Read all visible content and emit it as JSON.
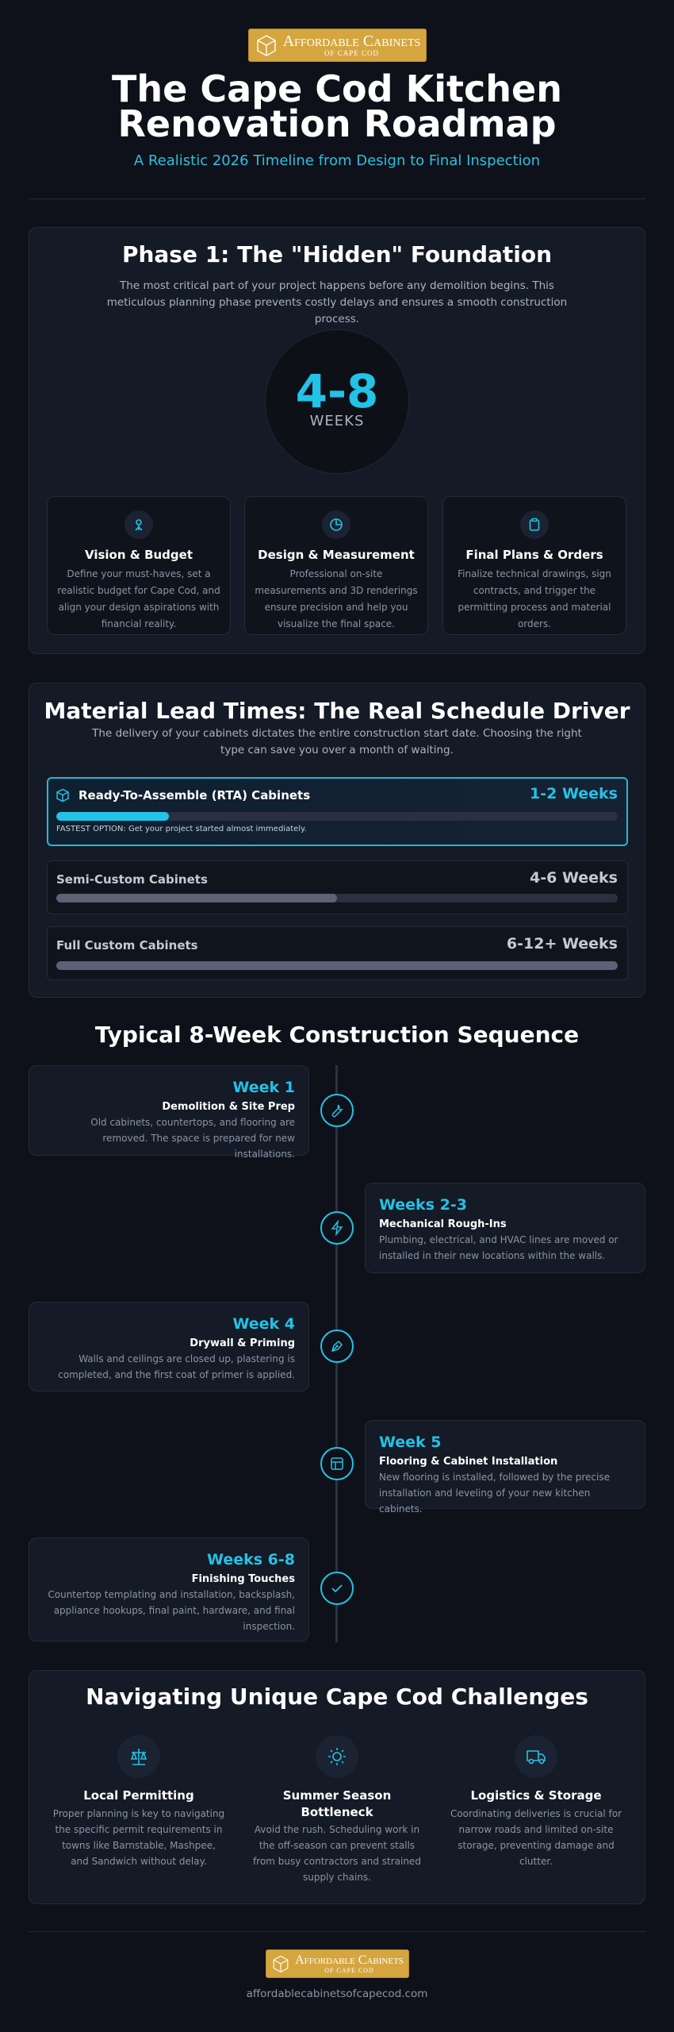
{
  "header": {
    "logo": {
      "name": "Affordable Cabinets",
      "tagline": "OF CAPE COD"
    },
    "title": "The Cape Cod Kitchen Renovation Roadmap",
    "subtitle": "A Realistic 2026 Timeline from Design to Final Inspection"
  },
  "phase1": {
    "title": "Phase 1: The \"Hidden\" Foundation",
    "description": "The most critical part of your project happens before any demolition begins. This meticulous planning phase prevents costly delays and ensures a smooth construction process.",
    "duration": "4-8",
    "duration_unit": "WEEKS",
    "steps": [
      {
        "title": "Vision & Budget",
        "description": "Define your must-haves, set a realistic budget for Cape Cod, and align your design aspirations with financial reality."
      },
      {
        "title": "Design & Measurement",
        "description": "Professional on-site measurements and 3D renderings ensure precision and help you visualize the final space."
      },
      {
        "title": "Final Plans & Orders",
        "description": "Finalize technical drawings, sign contracts, and trigger the permitting process and material orders."
      }
    ]
  },
  "lead_times": {
    "title": "Material Lead Times: The Real Schedule Driver",
    "description": "The delivery of your cabinets dictates the entire construction start date. Choosing the right type can save you over a month of waiting.",
    "options": [
      {
        "name": "Ready-To-Assemble (RTA) Cabinets",
        "duration": "1-2 Weeks",
        "note": "FASTEST OPTION: Get your project started almost immediately.",
        "bar_percent": 20
      },
      {
        "name": "Semi-Custom Cabinets",
        "duration": "4-6 Weeks",
        "bar_percent": 50
      },
      {
        "name": "Full Custom Cabinets",
        "duration": "6-12+ Weeks",
        "bar_percent": 100
      }
    ]
  },
  "sequence": {
    "title": "Typical 8-Week Construction Sequence",
    "steps": [
      {
        "week": "Week 1",
        "title": "Demolition & Site Prep",
        "description": "Old cabinets, countertops, and flooring are removed. The space is prepared for new installations."
      },
      {
        "week": "Weeks 2-3",
        "title": "Mechanical Rough-Ins",
        "description": "Plumbing, electrical, and HVAC lines are moved or installed in their new locations within the walls."
      },
      {
        "week": "Week 4",
        "title": "Drywall & Priming",
        "description": "Walls and ceilings are closed up, plastering is completed, and the first coat of primer is applied."
      },
      {
        "week": "Week 5",
        "title": "Flooring & Cabinet Installation",
        "description": "New flooring is installed, followed by the precise installation and leveling of your new kitchen cabinets."
      },
      {
        "week": "Weeks 6-8",
        "title": "Finishing Touches",
        "description": "Countertop templating and installation, backsplash, appliance hookups, final paint, hardware, and final inspection."
      }
    ]
  },
  "challenges": {
    "title": "Navigating Unique Cape Cod Challenges",
    "items": [
      {
        "title": "Local Permitting",
        "description": "Proper planning is key to navigating the specific permit requirements in towns like Barnstable, Mashpee, and Sandwich without delay."
      },
      {
        "title": "Summer Season Bottleneck",
        "description": "Avoid the rush. Scheduling work in the off-season can prevent stalls from busy contractors and strained supply chains."
      },
      {
        "title": "Logistics & Storage",
        "description": "Coordinating deliveries is crucial for narrow roads and limited on-site storage, preventing damage and clutter."
      }
    ]
  },
  "footer": {
    "logo": {
      "name": "Affordable Cabinets",
      "tagline": "OF CAPE COD"
    },
    "url": "affordablecabinetsofcapecod.com"
  }
}
